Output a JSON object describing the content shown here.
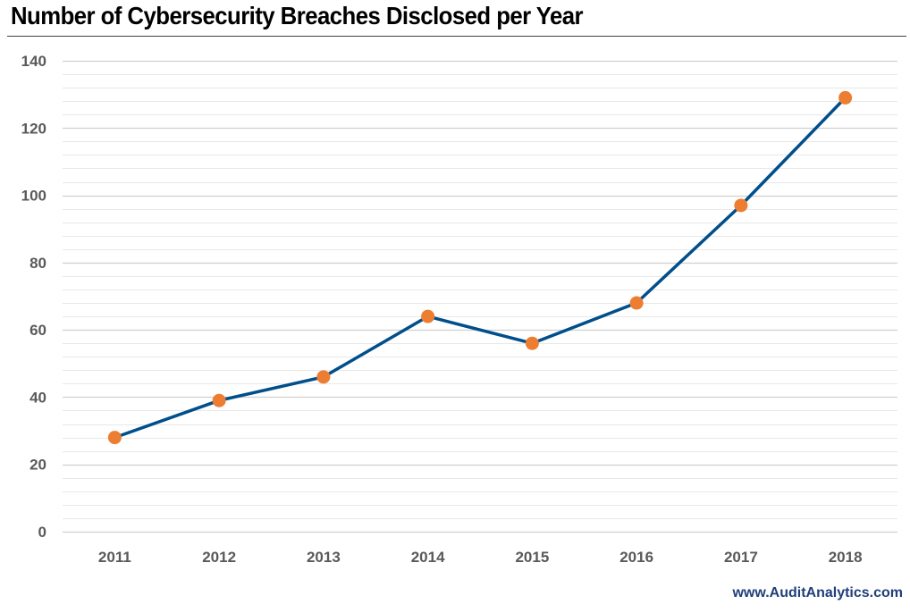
{
  "chart_data": {
    "type": "line",
    "title": "Number of Cybersecurity Breaches Disclosed per Year",
    "xlabel": "",
    "ylabel": "",
    "categories": [
      "2011",
      "2012",
      "2013",
      "2014",
      "2015",
      "2016",
      "2017",
      "2018"
    ],
    "series": [
      {
        "values": [
          28,
          39,
          46,
          64,
          56,
          68,
          97,
          129
        ],
        "line_color": "#004f8b",
        "marker_color": "#ed7d31"
      }
    ],
    "ylim": [
      0,
      140
    ],
    "y_ticks": [
      0,
      20,
      40,
      60,
      80,
      100,
      120,
      140
    ],
    "y_minor_step": 4,
    "grid": true,
    "legend": "none"
  },
  "source": "www.AuditAnalytics.com",
  "colors": {
    "major_grid": "#d0d0d0",
    "minor_grid": "#e8e8e8",
    "tick_text": "#595959",
    "source_text": "#1f3f7a"
  }
}
